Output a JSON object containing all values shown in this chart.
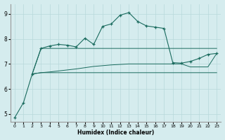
{
  "xlabel": "Humidex (Indice chaleur)",
  "background_color": "#d5ecee",
  "grid_color": "#b8d8db",
  "line_color": "#1a6b5e",
  "xlim": [
    -0.5,
    23.5
  ],
  "ylim": [
    4.7,
    9.4
  ],
  "yticks": [
    5,
    6,
    7,
    8,
    9
  ],
  "xticks": [
    0,
    1,
    2,
    3,
    4,
    5,
    6,
    7,
    8,
    9,
    10,
    11,
    12,
    13,
    14,
    15,
    16,
    17,
    18,
    19,
    20,
    21,
    22,
    23
  ],
  "curve_main_x": [
    0,
    1,
    2,
    3,
    4,
    5,
    6,
    7,
    8,
    9,
    10,
    11,
    12,
    13,
    14,
    15,
    16,
    17,
    18,
    19,
    20,
    21,
    22,
    23
  ],
  "curve_main_y": [
    4.85,
    5.45,
    6.6,
    7.62,
    7.72,
    7.78,
    7.75,
    7.68,
    8.03,
    7.78,
    8.5,
    8.6,
    8.95,
    9.05,
    8.7,
    8.52,
    8.47,
    8.42,
    7.05,
    7.03,
    7.1,
    7.22,
    7.38,
    7.42
  ],
  "curve_flat1_x": [
    2,
    3,
    4,
    5,
    6,
    7,
    8,
    9,
    10,
    11,
    12,
    13,
    14,
    15,
    16,
    17,
    18,
    19,
    20,
    21,
    22,
    23
  ],
  "curve_flat1_y": [
    6.6,
    7.62,
    7.62,
    7.62,
    7.62,
    7.62,
    7.62,
    7.62,
    7.62,
    7.62,
    7.62,
    7.62,
    7.62,
    7.62,
    7.62,
    7.62,
    7.62,
    7.62,
    7.62,
    7.62,
    7.62,
    7.62
  ],
  "curve_flat2_x": [
    2,
    3,
    4,
    5,
    6,
    7,
    8,
    9,
    10,
    11,
    12,
    13,
    14,
    15,
    16,
    17,
    18,
    19,
    20,
    21,
    22,
    23
  ],
  "curve_flat2_y": [
    6.6,
    6.65,
    6.68,
    6.72,
    6.76,
    6.8,
    6.85,
    6.9,
    6.93,
    6.96,
    6.98,
    7.0,
    7.0,
    7.0,
    7.0,
    7.0,
    7.0,
    7.0,
    6.88,
    6.88,
    6.88,
    7.42
  ],
  "curve_flat3_x": [
    2,
    3,
    4,
    5,
    6,
    7,
    8,
    9,
    10,
    11,
    12,
    13,
    14,
    15,
    16,
    17,
    18,
    19,
    20,
    21,
    22,
    23
  ],
  "curve_flat3_y": [
    6.6,
    6.65,
    6.65,
    6.65,
    6.65,
    6.65,
    6.65,
    6.65,
    6.65,
    6.65,
    6.65,
    6.65,
    6.65,
    6.65,
    6.65,
    6.65,
    6.65,
    6.65,
    6.65,
    6.65,
    6.65,
    6.65
  ]
}
